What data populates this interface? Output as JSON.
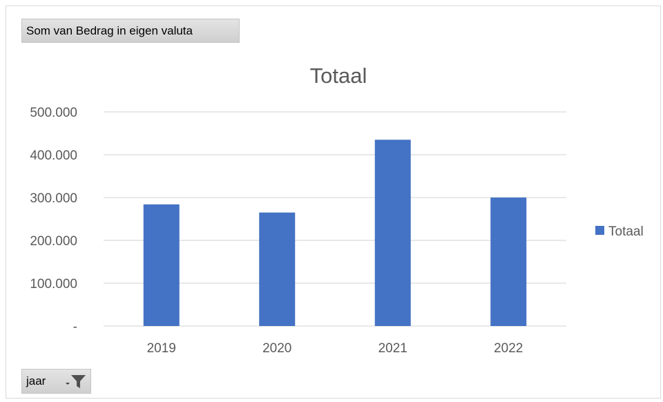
{
  "field_buttons": {
    "value_field": "Som van Bedrag in eigen valuta",
    "axis_field": "jaar"
  },
  "colors": {
    "bar": "#4472c4",
    "gridline": "#d9d9d9",
    "text": "#595959",
    "title": "#595959"
  },
  "icons": {
    "axis_filter": "dropdown-filter-icon"
  },
  "chart_data": {
    "type": "bar",
    "title": "Totaal",
    "categories": [
      "2019",
      "2020",
      "2021",
      "2022"
    ],
    "series": [
      {
        "name": "Totaal",
        "values": [
          284000,
          265000,
          435000,
          300000
        ]
      }
    ],
    "ylim": [
      0,
      500000
    ],
    "yticks": [
      0,
      100000,
      200000,
      300000,
      400000,
      500000
    ],
    "ytick_labels": [
      "-",
      "100.000",
      "200.000",
      "300.000",
      "400.000",
      "500.000"
    ],
    "grid": true,
    "legend": "right",
    "xlabel": "",
    "ylabel": ""
  }
}
